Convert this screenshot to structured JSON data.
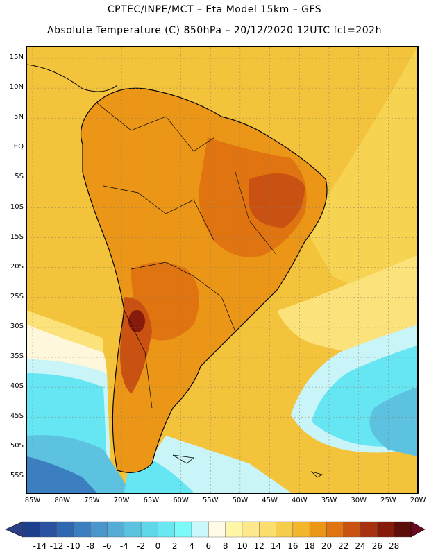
{
  "header": {
    "line1": "CPTEC/INPE/MCT –  Eta Model 15km – GFS",
    "line2": "Absolute Temperature (C) 850hPa – 20/12/2020 12UTC fct=202h"
  },
  "axes": {
    "latitudes": [
      "15N",
      "10N",
      "5N",
      "EQ",
      "5S",
      "10S",
      "15S",
      "20S",
      "25S",
      "30S",
      "35S",
      "40S",
      "45S",
      "50S",
      "55S"
    ],
    "longitudes": [
      "85W",
      "80W",
      "75W",
      "70W",
      "65W",
      "60W",
      "55W",
      "50W",
      "45W",
      "40W",
      "35W",
      "30W",
      "25W",
      "20W"
    ]
  },
  "colorbar": {
    "labels": [
      "-14",
      "-12",
      "-10",
      "-8",
      "-6",
      "-4",
      "-2",
      "0",
      "2",
      "4",
      "6",
      "8",
      "10",
      "12",
      "14",
      "16",
      "18",
      "20",
      "22",
      "24",
      "26",
      "28"
    ],
    "colors": [
      "#1e3f8c",
      "#2a52a0",
      "#2f67b1",
      "#3c7fc0",
      "#4a96cc",
      "#55acd6",
      "#5bc2e0",
      "#5fd6ea",
      "#6ae8f2",
      "#7cfafa",
      "#c8f8fb",
      "#fffbe6",
      "#fff6a8",
      "#fde98c",
      "#fbde6e",
      "#f6cd4b",
      "#f3b62c",
      "#eb9616",
      "#df7410",
      "#c95111",
      "#a8320f",
      "#871b0b",
      "#5c0e0a"
    ],
    "left_arrow_color": "#2b3f86",
    "right_arrow_color": "#6b0a1e"
  },
  "map_colors": {
    "ocean_warm": "#f3c33c",
    "ocean_mid": "#f6d351",
    "ocean_light": "#fbe27a",
    "cream": "#fff7dc",
    "pale_cyan": "#c9f5f8",
    "cyan": "#66e6f2",
    "sky": "#5cc2e0",
    "blue": "#3c7fc0",
    "land_orange": "#eb9616",
    "land_dark": "#df7410",
    "land_red": "#c95111",
    "land_max": "#871b0b"
  }
}
